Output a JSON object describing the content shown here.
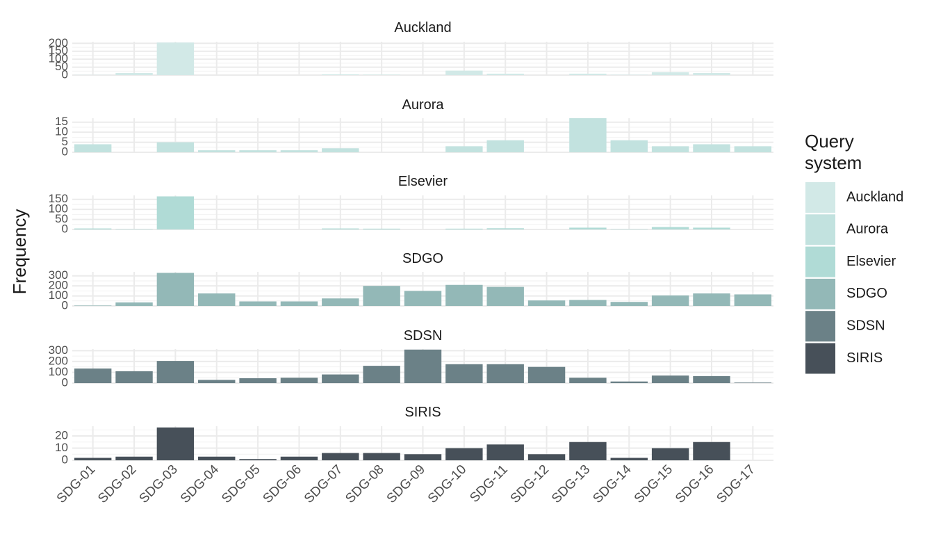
{
  "chart_data": {
    "type": "bar",
    "ylabel": "Frequency",
    "xlabel": "",
    "legend": {
      "title_lines": [
        "Query",
        "system"
      ],
      "position": "right"
    },
    "categories": [
      "SDG-01",
      "SDG-02",
      "SDG-03",
      "SDG-04",
      "SDG-05",
      "SDG-06",
      "SDG-07",
      "SDG-08",
      "SDG-09",
      "SDG-10",
      "SDG-11",
      "SDG-12",
      "SDG-13",
      "SDG-14",
      "SDG-15",
      "SDG-16",
      "SDG-17"
    ],
    "facets": [
      {
        "name": "Auckland",
        "color": "#d2e9e7",
        "ylim": [
          0,
          210
        ],
        "ticks": [
          0,
          50,
          100,
          150,
          200
        ],
        "values": [
          1,
          13,
          205,
          0,
          0,
          0,
          5,
          3,
          0,
          28,
          9,
          0,
          9,
          2,
          18,
          13,
          0
        ]
      },
      {
        "name": "Aurora",
        "color": "#c2e2df",
        "ylim": [
          0,
          17
        ],
        "ticks": [
          0,
          5,
          10,
          15
        ],
        "values": [
          4,
          0,
          5,
          1,
          1,
          1,
          2,
          0,
          0,
          3,
          6,
          0,
          17,
          6,
          3,
          4,
          3
        ]
      },
      {
        "name": "Elsevier",
        "color": "#b0dbd6",
        "ylim": [
          0,
          170
        ],
        "ticks": [
          0,
          50,
          100,
          150
        ],
        "values": [
          5,
          2,
          165,
          0,
          0,
          0,
          5,
          4,
          0,
          4,
          6,
          0,
          9,
          2,
          12,
          9,
          0
        ]
      },
      {
        "name": "SDGO",
        "color": "#93b8b7",
        "ylim": [
          0,
          340
        ],
        "ticks": [
          0,
          100,
          200,
          300
        ],
        "values": [
          4,
          35,
          330,
          125,
          45,
          45,
          75,
          200,
          150,
          210,
          190,
          55,
          60,
          40,
          105,
          125,
          115
        ]
      },
      {
        "name": "SDSN",
        "color": "#6b8187",
        "ylim": [
          0,
          315
        ],
        "ticks": [
          0,
          100,
          200,
          300
        ],
        "values": [
          135,
          110,
          205,
          30,
          45,
          50,
          80,
          160,
          310,
          175,
          175,
          150,
          50,
          15,
          70,
          65,
          5
        ]
      },
      {
        "name": "SIRIS",
        "color": "#475059",
        "ylim": [
          0,
          28
        ],
        "ticks": [
          0,
          10,
          20
        ],
        "values": [
          2,
          3,
          27,
          3,
          1,
          3,
          6,
          6,
          5,
          10,
          13,
          5,
          15,
          2,
          10,
          15,
          0
        ]
      }
    ]
  }
}
